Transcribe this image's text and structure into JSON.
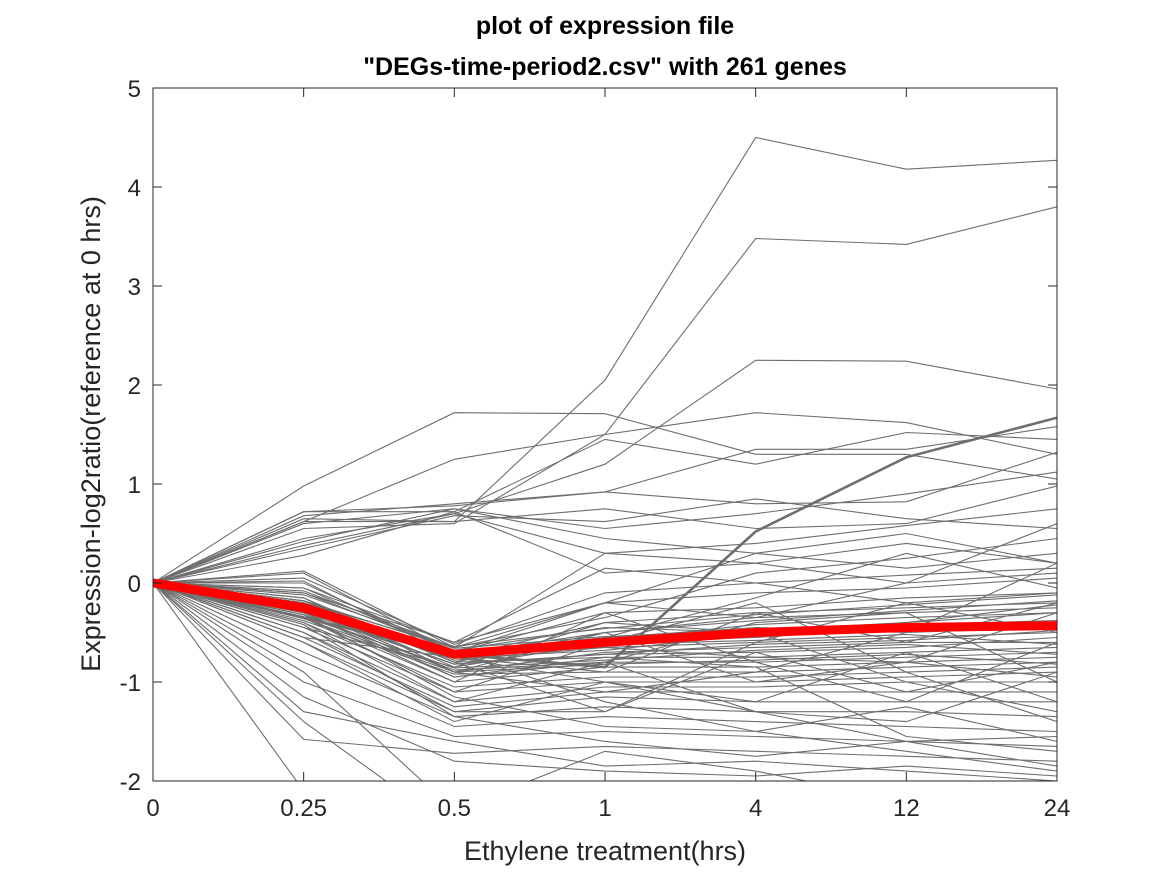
{
  "chart_data": {
    "type": "line",
    "title_line1": "plot of expression file",
    "title_line2": "\"DEGs-time-period2.csv\" with 261 genes",
    "xlabel": "Ethylene treatment(hrs)",
    "ylabel": "Expression-log2ratio(reference at 0 hrs)",
    "categories": [
      "0",
      "0.25",
      "0.5",
      "1",
      "4",
      "12",
      "24"
    ],
    "yticks": [
      "-2",
      "-1",
      "0",
      "1",
      "2",
      "3",
      "4",
      "5"
    ],
    "ylim": [
      -2,
      5
    ],
    "grid": false,
    "gene_color": "#6e6e6e",
    "mean_color": "#ff0000",
    "mean_series": [
      0,
      -0.25,
      -0.72,
      -0.6,
      -0.5,
      -0.45,
      -0.43
    ],
    "series": [
      {
        "values": [
          0,
          0.62,
          0.62,
          2.05,
          4.5,
          4.18,
          4.27
        ]
      },
      {
        "values": [
          0,
          0.55,
          0.6,
          1.5,
          3.48,
          3.42,
          3.8
        ]
      },
      {
        "values": [
          0,
          0.45,
          0.7,
          1.2,
          2.25,
          2.24,
          1.96
        ]
      },
      {
        "values": [
          0,
          0.98,
          1.72,
          1.71,
          1.3,
          1.3,
          1.05
        ]
      },
      {
        "values": [
          0,
          0.62,
          1.25,
          1.5,
          1.72,
          1.62,
          1.3
        ]
      },
      {
        "values": [
          0,
          -0.35,
          -0.72,
          -0.85,
          0.52,
          1.27,
          1.67
        ]
      },
      {
        "values": [
          0,
          0.72,
          0.72,
          1.45,
          1.2,
          1.52,
          1.45
        ]
      },
      {
        "values": [
          0,
          0.68,
          0.8,
          0.92,
          1.35,
          1.35,
          1.58
        ]
      },
      {
        "values": [
          0,
          0.72,
          0.78,
          0.92,
          0.8,
          0.82,
          1.32
        ]
      },
      {
        "values": [
          0,
          0.6,
          0.75,
          0.55,
          0.7,
          0.9,
          1.12
        ]
      },
      {
        "values": [
          0,
          0.65,
          0.62,
          0.75,
          0.55,
          0.6,
          0.98
        ]
      },
      {
        "values": [
          0,
          0.38,
          0.7,
          0.3,
          0.4,
          0.58,
          0.75
        ]
      },
      {
        "values": [
          0,
          0.35,
          0.68,
          0.62,
          0.85,
          0.65,
          0.55
        ]
      },
      {
        "values": [
          0,
          0.42,
          0.75,
          0.45,
          0.3,
          0.5,
          0.2
        ]
      },
      {
        "values": [
          0,
          0.28,
          0.72,
          0.1,
          0.2,
          0.0,
          0.1
        ]
      },
      {
        "values": [
          0,
          0.05,
          -0.62,
          -0.1,
          0.0,
          0.08,
          0.15
        ]
      },
      {
        "values": [
          0,
          0.12,
          -0.65,
          -0.2,
          -0.1,
          -0.05,
          0.05
        ]
      },
      {
        "values": [
          0,
          -0.05,
          -0.7,
          -0.3,
          -0.25,
          -0.15,
          -0.1
        ]
      },
      {
        "values": [
          0,
          0.02,
          -0.75,
          -0.4,
          -0.3,
          -0.25,
          -0.2
        ]
      },
      {
        "values": [
          0,
          -0.1,
          -0.68,
          -0.45,
          -0.5,
          -0.4,
          -0.3
        ]
      },
      {
        "values": [
          0,
          -0.15,
          -0.8,
          -0.5,
          -0.35,
          -0.3,
          -0.25
        ]
      },
      {
        "values": [
          0,
          -0.18,
          -0.72,
          -0.55,
          -0.45,
          -0.5,
          -0.45
        ]
      },
      {
        "values": [
          0,
          -0.2,
          -0.85,
          -0.6,
          -0.55,
          -0.45,
          -0.4
        ]
      },
      {
        "values": [
          0,
          -0.22,
          -0.78,
          -0.65,
          -0.6,
          -0.55,
          -0.5
        ]
      },
      {
        "values": [
          0,
          -0.25,
          -0.9,
          -0.7,
          -0.65,
          -0.6,
          -0.6
        ]
      },
      {
        "values": [
          0,
          -0.28,
          -0.82,
          -0.72,
          -0.7,
          -0.65,
          -0.55
        ]
      },
      {
        "values": [
          0,
          -0.3,
          -0.95,
          -0.75,
          -0.75,
          -0.7,
          -0.65
        ]
      },
      {
        "values": [
          0,
          -0.32,
          -0.88,
          -0.8,
          -0.8,
          -0.75,
          -0.7
        ]
      },
      {
        "values": [
          0,
          -0.35,
          -1.0,
          -0.85,
          -0.85,
          -0.8,
          -0.75
        ]
      },
      {
        "values": [
          0,
          -0.38,
          -0.92,
          -0.9,
          -0.9,
          -0.85,
          -0.8
        ]
      },
      {
        "values": [
          0,
          -0.4,
          -1.05,
          -0.95,
          -0.95,
          -0.9,
          -0.85
        ]
      },
      {
        "values": [
          0,
          -0.45,
          -1.1,
          -1.0,
          -1.0,
          -0.95,
          -0.9
        ]
      },
      {
        "values": [
          0,
          -0.5,
          -1.2,
          -1.05,
          -1.05,
          -1.0,
          -1.0
        ]
      },
      {
        "values": [
          0,
          -0.55,
          -1.25,
          -1.1,
          -1.1,
          -1.1,
          -1.1
        ]
      },
      {
        "values": [
          0,
          -0.6,
          -1.3,
          -1.15,
          -1.2,
          -1.2,
          -1.2
        ]
      },
      {
        "values": [
          0,
          -0.7,
          -1.35,
          -1.25,
          -1.3,
          -1.3,
          -1.35
        ]
      },
      {
        "values": [
          0,
          -0.8,
          -1.45,
          -1.35,
          -1.4,
          -1.45,
          -1.5
        ]
      },
      {
        "values": [
          0,
          -1.0,
          -1.55,
          -1.5,
          -1.55,
          -1.6,
          -1.65
        ]
      },
      {
        "values": [
          0,
          -1.58,
          -1.72,
          -1.65,
          -1.7,
          -1.75,
          -1.8
        ]
      },
      {
        "values": [
          0,
          -1.15,
          -1.8,
          -1.9,
          -1.95,
          -1.85,
          -1.95
        ]
      },
      {
        "values": [
          0,
          -1.3,
          -1.6,
          -1.85,
          -1.8,
          -1.9,
          -2.0
        ]
      },
      {
        "values": [
          0,
          -0.3,
          -0.7,
          -1.2,
          -1.5,
          -1.7,
          -1.9
        ]
      },
      {
        "values": [
          0,
          -0.2,
          -0.75,
          -1.0,
          -1.3,
          -1.6,
          -1.85
        ]
      },
      {
        "values": [
          0,
          -0.1,
          -0.6,
          -0.2,
          0.3,
          0.15,
          0.3
        ]
      },
      {
        "values": [
          0,
          -0.12,
          -0.65,
          -0.35,
          0.1,
          0.25,
          0.45
        ]
      },
      {
        "values": [
          0,
          0.0,
          -0.7,
          -0.2,
          -0.35,
          0.0,
          0.6
        ]
      },
      {
        "values": [
          0,
          -0.2,
          -0.8,
          -1.3,
          -0.6,
          -0.2,
          -0.1
        ]
      },
      {
        "values": [
          0,
          -0.25,
          -0.9,
          -0.5,
          -1.0,
          -0.8,
          -0.3
        ]
      },
      {
        "values": [
          0,
          -0.3,
          -1.0,
          -0.3,
          -0.8,
          -1.2,
          -0.6
        ]
      },
      {
        "values": [
          0,
          -0.35,
          -1.1,
          -0.6,
          -0.2,
          -0.9,
          -1.4
        ]
      },
      {
        "values": [
          0,
          -0.4,
          -1.2,
          -0.8,
          -0.4,
          -0.3,
          -1.0
        ]
      },
      {
        "values": [
          0,
          -0.5,
          -1.3,
          -1.3,
          -0.7,
          -1.1,
          -0.8
        ]
      },
      {
        "values": [
          0,
          -0.6,
          -1.4,
          -1.0,
          -1.2,
          -0.7,
          -1.2
        ]
      },
      {
        "values": [
          0,
          -0.55,
          -0.75,
          -0.9,
          -0.3,
          -0.6,
          -0.2
        ]
      },
      {
        "values": [
          0,
          -0.45,
          -0.85,
          -0.4,
          -0.5,
          -1.0,
          -1.3
        ]
      },
      {
        "values": [
          0,
          -0.15,
          -0.9,
          -1.1,
          -0.9,
          -0.5,
          0.2
        ]
      },
      {
        "values": [
          0,
          -0.25,
          -0.95,
          -0.8,
          -1.3,
          -1.4,
          -0.9
        ]
      },
      {
        "values": [
          0,
          -0.05,
          -0.6,
          0.15,
          0.0,
          -0.2,
          -0.5
        ]
      },
      {
        "values": [
          0,
          -0.08,
          -0.65,
          0.3,
          0.2,
          0.4,
          0.2
        ]
      },
      {
        "values": [
          0,
          -0.18,
          -0.8,
          -0.75,
          -0.85,
          -1.55,
          -1.7
        ]
      },
      {
        "values": [
          0,
          -0.32,
          -1.15,
          -1.45,
          -1.5,
          -1.25,
          -1.6
        ]
      },
      {
        "values": [
          0,
          -0.42,
          -1.35,
          -1.6,
          -1.75,
          -1.6,
          -1.55
        ]
      },
      {
        "values": [
          0,
          0.1,
          -0.7,
          -0.55,
          -0.15,
          0.3,
          -0.05
        ]
      },
      {
        "values": [
          0,
          -0.2,
          -0.7,
          -0.65,
          -0.75,
          -0.8,
          -0.95
        ]
      },
      {
        "values": [
          0,
          -0.26,
          -0.76,
          -0.68,
          -0.52,
          -0.42,
          -0.38
        ]
      },
      {
        "values": [
          0,
          -0.3,
          -0.82,
          -0.72,
          -0.62,
          -0.58,
          -0.48
        ]
      },
      {
        "values": [
          0,
          -0.22,
          -0.68,
          -0.58,
          -0.42,
          -0.35,
          -0.3
        ]
      },
      {
        "values": [
          0,
          -0.28,
          -0.74,
          -0.62,
          -0.58,
          -0.52,
          -0.62
        ]
      },
      {
        "values": [
          0,
          -0.18,
          -0.66,
          -0.54,
          -0.48,
          -0.4,
          -0.22
        ]
      },
      {
        "values": [
          0,
          -0.34,
          -0.86,
          -0.78,
          -0.68,
          -0.62,
          -0.72
        ]
      },
      {
        "values": [
          0,
          -0.24,
          -0.72,
          -0.5,
          -0.38,
          -0.28,
          -0.18
        ]
      },
      {
        "values": [
          0,
          -0.2,
          -0.64,
          -0.46,
          -0.32,
          -0.22,
          -0.12
        ]
      },
      {
        "values": [
          0,
          -0.36,
          -0.9,
          -0.82,
          -0.78,
          -0.72,
          -0.82
        ]
      },
      {
        "values": [
          0,
          -2.1,
          -2.1,
          -2.1,
          -2.1,
          -2.1,
          -2.1
        ]
      },
      {
        "values": [
          0,
          -0.9,
          -2.3,
          -1.7,
          -1.9,
          -2.2,
          -2.4
        ]
      },
      {
        "values": [
          0,
          -1.4,
          -2.5,
          -2.2,
          -2.2,
          -2.3,
          -2.1
        ]
      }
    ]
  }
}
